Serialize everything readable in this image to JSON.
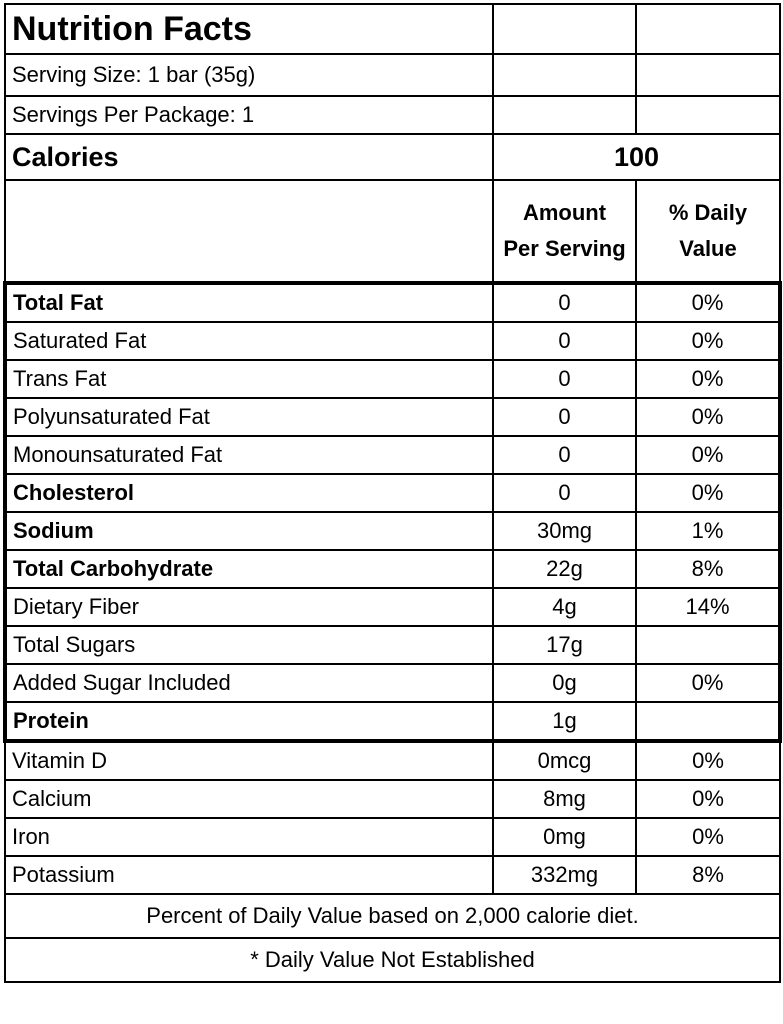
{
  "label": {
    "title": "Nutrition Facts",
    "serving_size": "Serving Size: 1 bar (35g)",
    "servings_per_package": "Servings Per Package: 1",
    "calories_label": "Calories",
    "calories_value": "100",
    "header_amount_line1": "Amount",
    "header_amount_line2": "Per Serving",
    "header_dv_line1": "% Daily",
    "header_dv_line2": "Value"
  },
  "nutrients": [
    {
      "name": "Total Fat",
      "amount": "0",
      "dv": "0%",
      "bold": true
    },
    {
      "name": "Saturated Fat",
      "amount": "0",
      "dv": "0%",
      "bold": false
    },
    {
      "name": "Trans Fat",
      "amount": "0",
      "dv": "0%",
      "bold": false
    },
    {
      "name": "Polyunsaturated Fat",
      "amount": "0",
      "dv": "0%",
      "bold": false
    },
    {
      "name": "Monounsaturated Fat",
      "amount": "0",
      "dv": "0%",
      "bold": false
    },
    {
      "name": "Cholesterol",
      "amount": "0",
      "dv": "0%",
      "bold": true
    },
    {
      "name": "Sodium",
      "amount": "30mg",
      "dv": "1%",
      "bold": true
    },
    {
      "name": "Total Carbohydrate",
      "amount": "22g",
      "dv": "8%",
      "bold": true
    },
    {
      "name": "Dietary Fiber",
      "amount": "4g",
      "dv": "14%",
      "bold": false
    },
    {
      "name": "Total Sugars",
      "amount": "17g",
      "dv": "",
      "bold": false
    },
    {
      "name": "Added Sugar Included",
      "amount": "0g",
      "dv": "0%",
      "bold": false
    },
    {
      "name": "Protein",
      "amount": "1g",
      "dv": "",
      "bold": true
    }
  ],
  "minerals": [
    {
      "name": "Vitamin D",
      "amount": "0mcg",
      "dv": "0%"
    },
    {
      "name": "Calcium",
      "amount": "8mg",
      "dv": "0%"
    },
    {
      "name": "Iron",
      "amount": "0mg",
      "dv": "0%"
    },
    {
      "name": "Potassium",
      "amount": "332mg",
      "dv": "8%"
    }
  ],
  "footer": {
    "note": "Percent of Daily Value based on 2,000 calorie diet.",
    "asterisk": "* Daily Value Not Established"
  }
}
